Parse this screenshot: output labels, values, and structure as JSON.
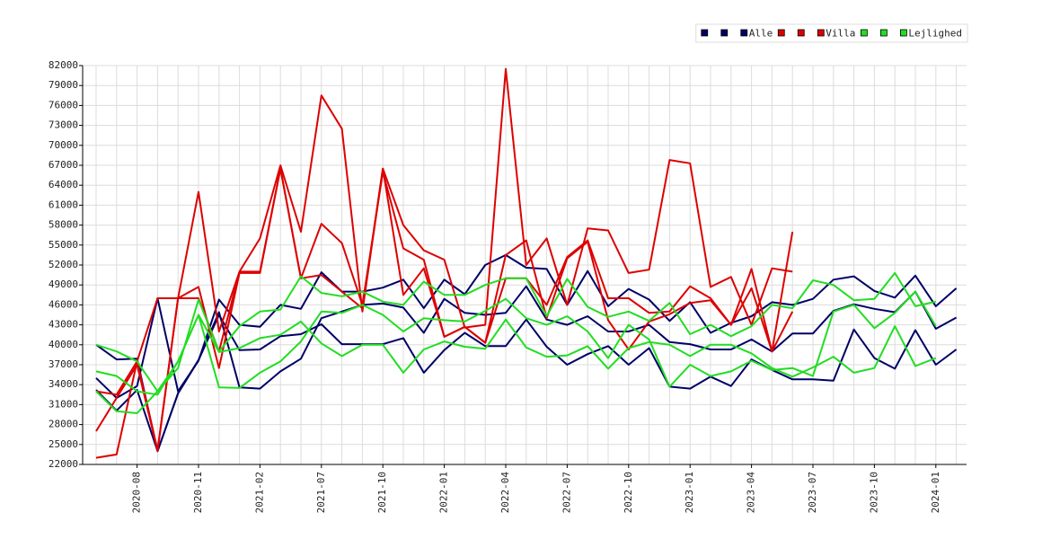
{
  "chart_data": {
    "type": "line",
    "categories": [
      null,
      null,
      "2020-08",
      null,
      null,
      "2020-11",
      null,
      null,
      "2021-02",
      null,
      null,
      "2021-07",
      null,
      null,
      "2021-10",
      null,
      null,
      "2022-01",
      null,
      null,
      "2022-04",
      null,
      null,
      "2022-07",
      null,
      null,
      "2022-10",
      null,
      null,
      "2023-01",
      null,
      null,
      "2023-04",
      null,
      null,
      "2023-07",
      null,
      null,
      "2023-10",
      null,
      null,
      "2024-01",
      null
    ],
    "ylim": [
      22000,
      82000
    ],
    "yticks": [
      22000,
      25000,
      28000,
      31000,
      34000,
      37000,
      40000,
      43000,
      46000,
      49000,
      52000,
      55000,
      58000,
      61000,
      64000,
      67000,
      70000,
      73000,
      76000,
      79000,
      82000
    ],
    "grid": true,
    "legend": "top-right",
    "series": [
      {
        "color": "#000066",
        "values": [
          40000,
          37800,
          37900,
          24000,
          32700,
          37700,
          44500,
          39200,
          39300,
          41300,
          41600,
          43100,
          40100,
          40100,
          40100,
          41000,
          35800,
          39200,
          41800,
          39800,
          39800,
          43800,
          39700,
          37000,
          38600,
          39800,
          37000,
          39500,
          33700,
          33400,
          35200,
          33800,
          37800,
          36200,
          34800,
          34800,
          34600,
          42300,
          38000,
          36400,
          42200,
          37000,
          39300
        ]
      },
      {
        "color": "#000066",
        "values": [
          35000,
          32000,
          33800,
          47000,
          33000,
          37600,
          46800,
          43000,
          42700,
          46000,
          45400,
          50900,
          48000,
          48000,
          48600,
          49800,
          45500,
          49800,
          47600,
          52000,
          53500,
          51600,
          51400,
          46000,
          51100,
          45800,
          48400,
          46800,
          43600,
          46400,
          41800,
          43300,
          44300,
          46400,
          46000,
          46900,
          49800,
          50300,
          48100,
          47100,
          50400,
          45800,
          48500
        ]
      },
      {
        "name": "Alle",
        "color": "#000066",
        "values": [
          33200,
          30100,
          33200,
          24000,
          32700,
          37700,
          44900,
          33600,
          33400,
          36000,
          37900,
          44000,
          45000,
          46000,
          46200,
          45600,
          41800,
          46900,
          44800,
          44500,
          44800,
          48800,
          43800,
          43000,
          44300,
          42000,
          42000,
          43000,
          40400,
          40100,
          39300,
          39300,
          40800,
          39000,
          41700,
          41700,
          45100,
          46100,
          45400,
          44900,
          48000,
          42400,
          44100
        ]
      },
      {
        "color": "#dd0000",
        "values": [
          27000,
          32000,
          37000,
          24000,
          47000,
          63000,
          42000,
          51000,
          56000,
          67000,
          57000,
          77500,
          72500,
          45000,
          66500,
          58000,
          54200,
          52800,
          42600,
          43000,
          81500,
          52000,
          56000,
          46000,
          57500,
          57200,
          50800,
          51300,
          67800,
          67300,
          48700,
          50200,
          43000,
          51500,
          51000,
          null,
          null,
          null,
          null,
          null,
          null,
          null,
          null
        ]
      },
      {
        "color": "#dd0000",
        "values": [
          33000,
          32500,
          37500,
          24200,
          47000,
          47000,
          39000,
          51000,
          51000,
          66500,
          50000,
          58200,
          55300,
          46000,
          66000,
          54500,
          52800,
          41200,
          42700,
          40300,
          50000,
          50000,
          46000,
          53200,
          55700,
          47000,
          47000,
          44800,
          45000,
          48800,
          47000,
          43000,
          48500,
          39000,
          57000,
          null,
          null,
          null,
          null,
          null,
          null,
          null,
          null
        ]
      },
      {
        "name": "Villa",
        "color": "#dd0000",
        "values": [
          23000,
          23500,
          37500,
          47000,
          47000,
          48700,
          36500,
          50800,
          50800,
          66500,
          50000,
          50500,
          48000,
          45500,
          66500,
          47500,
          51500,
          41200,
          42700,
          40300,
          53500,
          55700,
          44000,
          53000,
          55500,
          43700,
          39300,
          43500,
          44600,
          46300,
          46700,
          43000,
          51400,
          39000,
          45000,
          null,
          null,
          null,
          null,
          null,
          null,
          null,
          null
        ]
      },
      {
        "color": "#22dd22",
        "values": [
          40000,
          39000,
          37500,
          33000,
          36500,
          46800,
          39000,
          42800,
          45000,
          45300,
          50300,
          47800,
          47300,
          48000,
          46500,
          46000,
          49500,
          47500,
          47500,
          49000,
          50000,
          50000,
          44300,
          49900,
          45700,
          44200,
          45000,
          43600,
          46300,
          41600,
          43000,
          41300,
          42800,
          46000,
          45500,
          49700,
          49000,
          46700,
          46900,
          50800,
          45800,
          46500,
          null
        ]
      },
      {
        "color": "#22dd22",
        "values": [
          36000,
          35300,
          33000,
          32500,
          37500,
          44500,
          38900,
          39500,
          41000,
          41500,
          43500,
          40200,
          38300,
          40000,
          40000,
          35800,
          39300,
          40500,
          39700,
          39400,
          43800,
          39600,
          38200,
          38400,
          39800,
          36400,
          39500,
          40400,
          40000,
          38300,
          40000,
          40000,
          38700,
          36500,
          35200,
          36600,
          38200,
          35800,
          36500,
          42800,
          36800,
          38000,
          null
        ]
      },
      {
        "name": "Lejlighed",
        "color": "#22dd22",
        "values": [
          33000,
          30000,
          29700,
          33000,
          37500,
          44500,
          33600,
          33500,
          35800,
          37500,
          40500,
          45000,
          44800,
          46000,
          44500,
          42000,
          44000,
          43700,
          43500,
          45100,
          46900,
          44000,
          43000,
          44300,
          42000,
          38000,
          43000,
          40800,
          33700,
          37000,
          35300,
          36000,
          37600,
          36200,
          36500,
          35300,
          45000,
          46000,
          42500,
          44800,
          48000,
          42800,
          null
        ]
      }
    ]
  }
}
